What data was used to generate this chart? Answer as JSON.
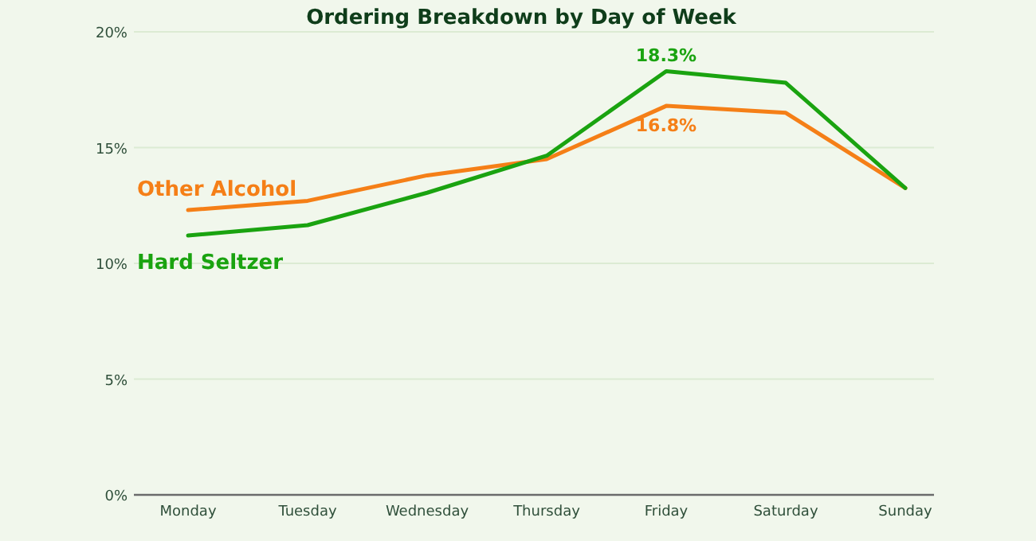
{
  "chart_data": {
    "type": "line",
    "title": "Ordering Breakdown by Day of Week",
    "categories": [
      "Monday",
      "Tuesday",
      "Wednesday",
      "Thursday",
      "Friday",
      "Saturday",
      "Sunday"
    ],
    "series": [
      {
        "name": "Other Alcohol",
        "color": "#f57f17",
        "values": [
          12.3,
          12.7,
          13.8,
          14.5,
          16.8,
          16.5,
          13.25
        ],
        "value_labels": [
          null,
          null,
          null,
          null,
          "16.8%",
          null,
          null
        ]
      },
      {
        "name": "Hard Seltzer",
        "color": "#1aa310",
        "values": [
          11.2,
          11.65,
          13.05,
          14.65,
          18.3,
          17.8,
          13.25
        ],
        "value_labels": [
          null,
          null,
          null,
          null,
          "18.3%",
          null,
          null
        ]
      }
    ],
    "ylim": [
      0,
      20
    ],
    "yticks": [
      {
        "value": 0,
        "label": "0%"
      },
      {
        "value": 5,
        "label": "5%"
      },
      {
        "value": 10,
        "label": "10%"
      },
      {
        "value": 15,
        "label": "15%"
      },
      {
        "value": 20,
        "label": "20%"
      }
    ],
    "grid": "y",
    "marker": "none",
    "line_style": "solid"
  }
}
